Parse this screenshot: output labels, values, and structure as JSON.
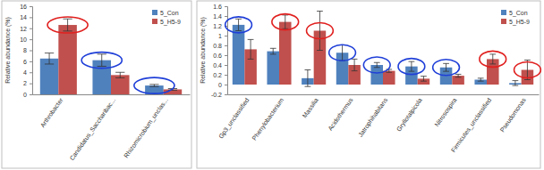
{
  "chart_data": [
    {
      "type": "bar",
      "y_label": "Relative abundance (%)",
      "categories": [
        "Arthrobacter",
        "Candidatus_Saccharibac...",
        "Rhizomicrobium_unclas..."
      ],
      "series": [
        {
          "name": "5_Con",
          "color": "#4f81bd",
          "values": [
            6.5,
            6.2,
            1.6
          ],
          "errors": [
            1.0,
            1.1,
            0.2
          ]
        },
        {
          "name": "5_H5-9",
          "color": "#c0504d",
          "values": [
            12.6,
            3.5,
            0.9
          ],
          "errors": [
            1.1,
            0.5,
            0.15
          ]
        }
      ],
      "ylim": [
        0,
        16
      ],
      "yticks": [
        0,
        2,
        4,
        6,
        8,
        10,
        12,
        14,
        16
      ],
      "legend": "upper right"
    },
    {
      "type": "bar",
      "y_label": "Relative abundance (%)",
      "categories": [
        "Gp3_unclassified",
        "Phenylobacterium",
        "Massilia",
        "Acidothermus",
        "Jatrophihabitans",
        "Gryllotalpicola",
        "Nitrosospira",
        "Firmicutes_unclassified",
        "Pseudomonas"
      ],
      "series": [
        {
          "name": "5_Con",
          "color": "#4f81bd",
          "values": [
            1.22,
            0.68,
            0.13,
            0.65,
            0.4,
            0.37,
            0.35,
            0.1,
            0.03
          ],
          "errors": [
            0.12,
            0.06,
            0.17,
            0.16,
            0.05,
            0.1,
            0.08,
            0.03,
            0.05
          ]
        },
        {
          "name": "5_H5-9",
          "color": "#c0504d",
          "values": [
            0.72,
            1.28,
            1.1,
            0.4,
            0.28,
            0.12,
            0.18,
            0.52,
            0.3
          ],
          "errors": [
            0.2,
            0.14,
            0.4,
            0.12,
            0.03,
            0.05,
            0.03,
            0.1,
            0.2
          ]
        }
      ],
      "ylim": [
        -0.2,
        1.6
      ],
      "yticks": [
        -0.2,
        0,
        0.2,
        0.4,
        0.6,
        0.8,
        1.0,
        1.2,
        1.4,
        1.6
      ],
      "legend": "upper right"
    }
  ]
}
